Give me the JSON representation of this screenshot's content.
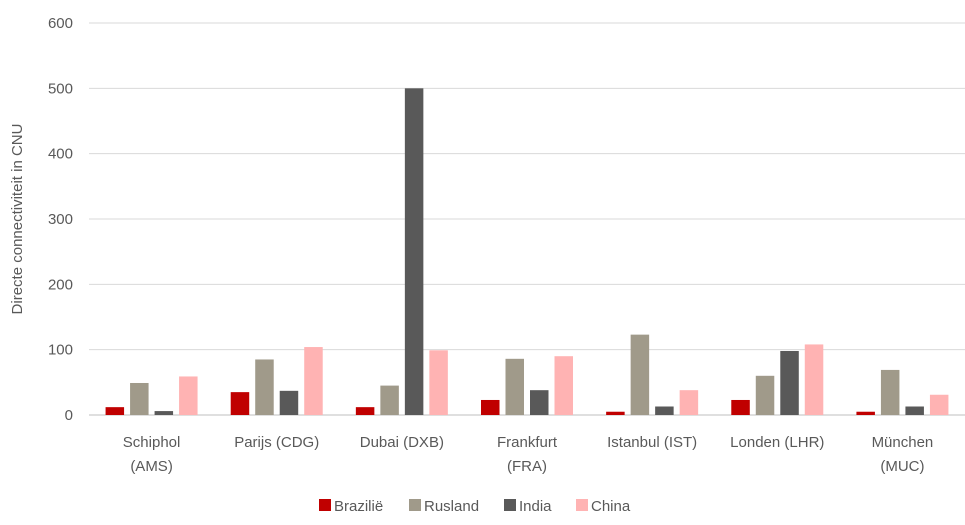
{
  "chart_data": {
    "type": "bar",
    "categories": [
      [
        "Schiphol",
        "(AMS)"
      ],
      [
        "Parijs (CDG)"
      ],
      [
        "Dubai (DXB)"
      ],
      [
        "Frankfurt",
        "(FRA)"
      ],
      [
        "Istanbul (IST)"
      ],
      [
        "Londen (LHR)"
      ],
      [
        "München",
        "(MUC)"
      ]
    ],
    "series": [
      {
        "name": "Brazilië",
        "color": "#c00000",
        "values": [
          12,
          35,
          12,
          23,
          5,
          23,
          5
        ]
      },
      {
        "name": "Rusland",
        "color": "#a09a8a",
        "values": [
          49,
          85,
          45,
          86,
          123,
          60,
          69
        ]
      },
      {
        "name": "India",
        "color": "#595959",
        "values": [
          6,
          37,
          500,
          38,
          13,
          98,
          13
        ]
      },
      {
        "name": "China",
        "color": "#ffb3b3",
        "values": [
          59,
          104,
          99,
          90,
          38,
          108,
          31
        ]
      }
    ],
    "xlabel": "",
    "ylabel": "Directe connectiviteit in CNU",
    "ylim": [
      0,
      600
    ],
    "yticks": [
      0,
      100,
      200,
      300,
      400,
      500,
      600
    ],
    "grid": true,
    "legend_position": "bottom"
  }
}
